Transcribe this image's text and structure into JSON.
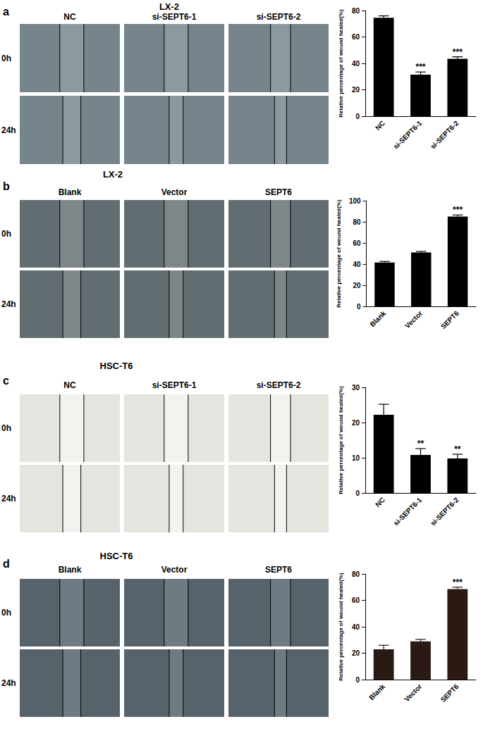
{
  "chart_data": [
    {
      "type": "bar",
      "y_label": "Relative percentage of wound healed(%)",
      "categories": [
        "NC",
        "si-SEPT6-1",
        "si-SEPT6-2"
      ],
      "values": [
        74.5,
        31.5,
        43.5
      ],
      "errors": [
        1.5,
        2,
        1.5
      ],
      "annotations": [
        null,
        "***",
        "***"
      ],
      "color": "#000000",
      "ylim": [
        0,
        80
      ],
      "yticks": [
        0,
        20,
        40,
        60,
        80
      ]
    },
    {
      "type": "bar",
      "y_label": "Relative percentage of wound healed(%)",
      "categories": [
        "Blank",
        "Vector",
        "SEPT6"
      ],
      "values": [
        41.5,
        51,
        85
      ],
      "errors": [
        1,
        1,
        1.5
      ],
      "annotations": [
        null,
        null,
        "***"
      ],
      "color": "#000000",
      "ylim": [
        0,
        100
      ],
      "yticks": [
        0,
        20,
        40,
        60,
        80,
        100
      ]
    },
    {
      "type": "bar",
      "y_label": "Relative percentage of wound healed(%)",
      "categories": [
        "NC",
        "si-SEPT6-1",
        "si-SEPT6-2"
      ],
      "values": [
        22.2,
        10.8,
        9.8
      ],
      "errors": [
        3,
        1.8,
        1.2
      ],
      "annotations": [
        null,
        "**",
        "**"
      ],
      "color": "#000000",
      "ylim": [
        0,
        30
      ],
      "yticks": [
        0,
        10,
        20,
        30
      ]
    },
    {
      "type": "bar",
      "y_label": "Relative percentage of wound healed(%)",
      "categories": [
        "Blank",
        "Vector",
        "SEPT6"
      ],
      "values": [
        23,
        29,
        68.5
      ],
      "errors": [
        3,
        1.5,
        1.5
      ],
      "annotations": [
        null,
        null,
        "***"
      ],
      "color": "#2b1a14",
      "ylim": [
        0,
        80
      ],
      "yticks": [
        0,
        20,
        40,
        60,
        80
      ]
    }
  ],
  "figure": {
    "panels": [
      {
        "label": "a",
        "title": "LX-2",
        "columns": [
          "NC",
          "si-SEPT6-1",
          "si-SEPT6-2"
        ],
        "rows": [
          "0h",
          "24h"
        ]
      },
      {
        "label": "b",
        "title": "LX-2",
        "columns": [
          "Blank",
          "Vector",
          "SEPT6"
        ],
        "rows": [
          "0h",
          "24h"
        ]
      },
      {
        "label": "c",
        "title": "HSC-T6",
        "columns": [
          "NC",
          "si-SEPT6-1",
          "si-SEPT6-2"
        ],
        "rows": [
          "0h",
          "24h"
        ]
      },
      {
        "label": "d",
        "title": "HSC-T6",
        "columns": [
          "Blank",
          "Vector",
          "SEPT6"
        ],
        "rows": [
          "0h",
          "24h"
        ]
      }
    ]
  }
}
